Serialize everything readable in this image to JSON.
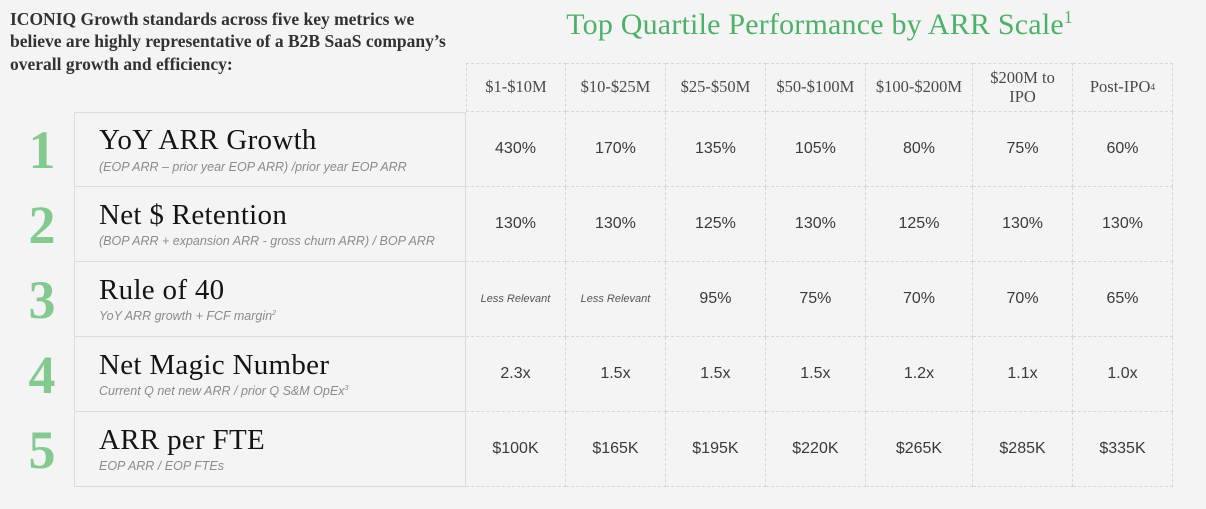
{
  "intro": "ICONIQ Growth standards across five key metrics we believe are highly representative of a B2B SaaS company’s overall growth and efficiency:",
  "colors": {
    "title_green": "#4db169",
    "number_green": "#84ca90",
    "background": "#f5f4f5"
  },
  "chart_data": {
    "type": "table",
    "title": "Top Quartile Performance by ARR Scale",
    "title_sup": "1",
    "columns": [
      {
        "label": "$1-$10M",
        "sup": ""
      },
      {
        "label": "$10-$25M",
        "sup": ""
      },
      {
        "label": "$25-$50M",
        "sup": ""
      },
      {
        "label": "$50-$100M",
        "sup": ""
      },
      {
        "label": "$100-$200M",
        "sup": ""
      },
      {
        "label": "$200M to IPO",
        "sup": ""
      },
      {
        "label": "Post-IPO",
        "sup": "4"
      }
    ],
    "rows": [
      {
        "num": "1",
        "title": "YoY ARR Growth",
        "formula": "(EOP ARR – prior year EOP ARR) /prior year EOP ARR",
        "formula_sup": "",
        "values": [
          "430%",
          "170%",
          "135%",
          "105%",
          "80%",
          "75%",
          "60%"
        ]
      },
      {
        "num": "2",
        "title": "Net $ Retention",
        "formula": "(BOP ARR + expansion ARR - gross churn ARR) / BOP ARR",
        "formula_sup": "",
        "values": [
          "130%",
          "130%",
          "125%",
          "130%",
          "125%",
          "130%",
          "130%"
        ]
      },
      {
        "num": "3",
        "title": "Rule of 40",
        "formula": "YoY ARR growth + FCF margin",
        "formula_sup": "2",
        "values": [
          "Less Relevant",
          "Less Relevant",
          "95%",
          "75%",
          "70%",
          "70%",
          "65%"
        ]
      },
      {
        "num": "4",
        "title": "Net Magic Number",
        "formula": "Current Q net new ARR / prior Q S&M OpEx",
        "formula_sup": "3",
        "values": [
          "2.3x",
          "1.5x",
          "1.5x",
          "1.5x",
          "1.2x",
          "1.1x",
          "1.0x"
        ]
      },
      {
        "num": "5",
        "title": "ARR per FTE",
        "formula": "EOP ARR / EOP FTEs",
        "formula_sup": "",
        "values": [
          "$100K",
          "$165K",
          "$195K",
          "$220K",
          "$265K",
          "$285K",
          "$335K"
        ]
      }
    ]
  }
}
